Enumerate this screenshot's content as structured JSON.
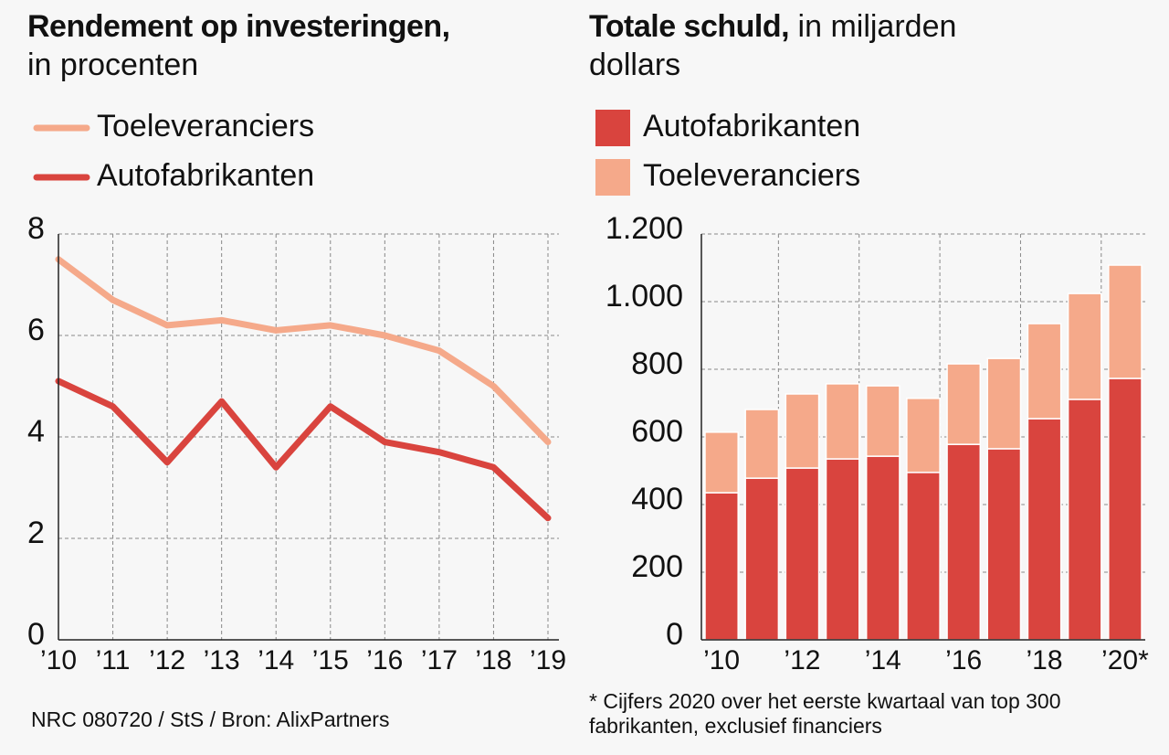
{
  "chart_data": [
    {
      "type": "line",
      "title": "Rendement op investeringen,",
      "subtitle": "in procenten",
      "categories": [
        "’10",
        "’11",
        "’12",
        "’13",
        "’14",
        "’15",
        "’16",
        "’17",
        "’18",
        "’19"
      ],
      "series": [
        {
          "name": "Toeleveranciers",
          "color": "#f5a98a",
          "values": [
            7.5,
            6.7,
            6.2,
            6.3,
            6.1,
            6.2,
            6.0,
            5.7,
            5.0,
            3.9
          ]
        },
        {
          "name": "Autofabrikanten",
          "color": "#d9443e",
          "values": [
            5.1,
            4.6,
            3.5,
            4.7,
            3.4,
            4.6,
            3.9,
            3.7,
            3.4,
            2.4
          ]
        }
      ],
      "ylim": [
        0,
        8
      ],
      "yticks": [
        0,
        2,
        4,
        6,
        8
      ],
      "grid": true,
      "source": "NRC 080720 / StS / Bron: AlixPartners"
    },
    {
      "type": "bar",
      "stacked": true,
      "title": "Totale schuld,",
      "subtitle": "in miljarden dollars",
      "categories": [
        "’10",
        null,
        "’12",
        null,
        "’14",
        null,
        "’16",
        null,
        "’18",
        null,
        "’20*"
      ],
      "series": [
        {
          "name": "Autofabrikanten",
          "color": "#d9443e",
          "values": [
            435,
            478,
            508,
            535,
            543,
            495,
            578,
            565,
            654,
            711,
            773
          ]
        },
        {
          "name": "Toeleveranciers",
          "color": "#f5a98a",
          "values": [
            179,
            203,
            219,
            222,
            208,
            219,
            238,
            267,
            281,
            313,
            335
          ]
        }
      ],
      "ylim": [
        0,
        1200
      ],
      "yticks": [
        0,
        200,
        400,
        600,
        800,
        {
          "value": 1000,
          "label": "1.000"
        },
        {
          "value": 1200,
          "label": "1.200"
        }
      ],
      "grid": true,
      "footnote": "* Cijfers 2020 over het eerste kwartaal van top 300 fabrikanten, exclusief financiers"
    }
  ]
}
